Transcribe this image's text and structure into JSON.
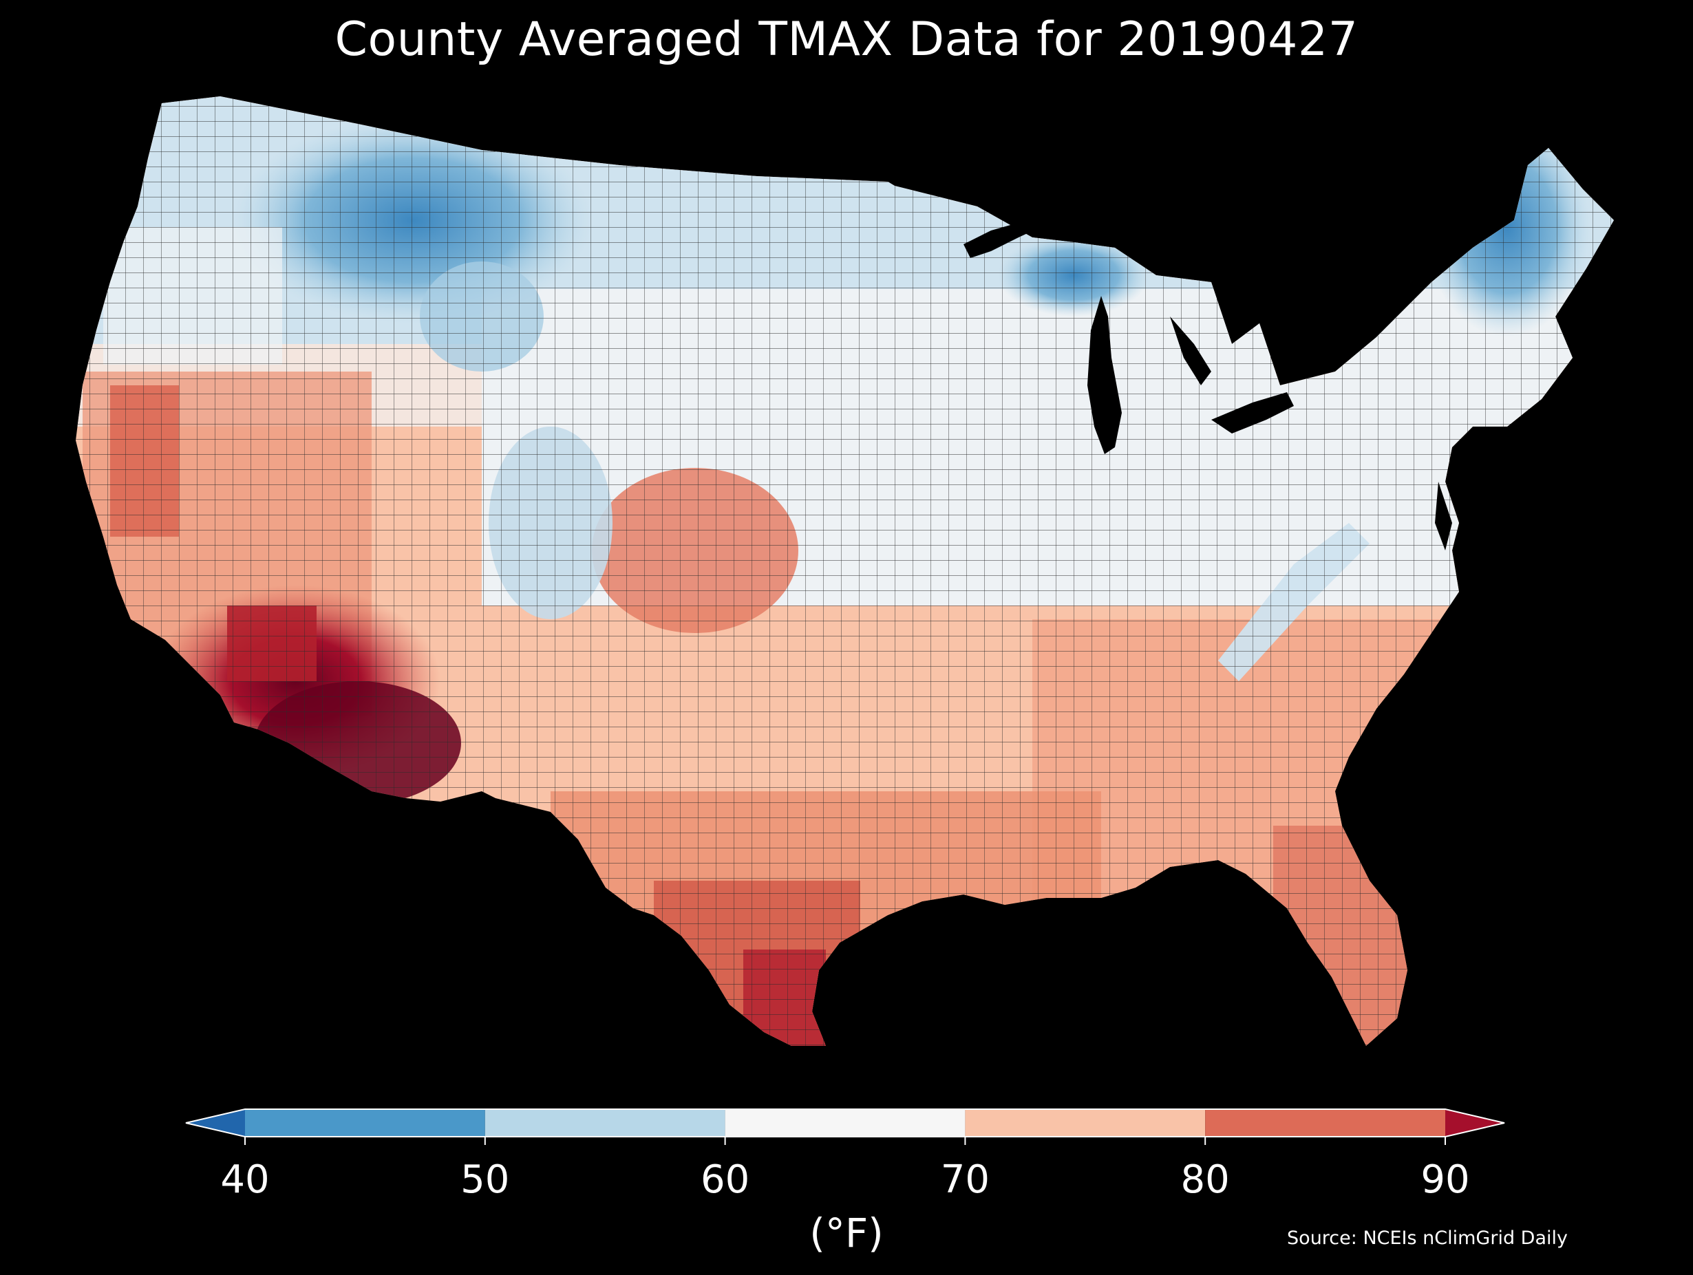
{
  "title": "County Averaged TMAX Data for 20190427",
  "source": "Source: NCEIs nClimGrid Daily",
  "colorbar": {
    "unit_label": "(°F)",
    "ticks": [
      "40",
      "50",
      "60",
      "70",
      "80",
      "90"
    ],
    "bins": [
      {
        "min": 40,
        "max": 50,
        "color": "#4a98c9"
      },
      {
        "min": 50,
        "max": 60,
        "color": "#b7d7e8"
      },
      {
        "min": 60,
        "max": 70,
        "color": "#f6f6f6"
      },
      {
        "min": 70,
        "max": 80,
        "color": "#f9c3a8"
      },
      {
        "min": 80,
        "max": 90,
        "color": "#dd6b57"
      }
    ],
    "under_color": "#2166ac",
    "over_color": "#a50f2c",
    "extend": "both"
  },
  "map": {
    "region": "Contiguous United States",
    "unit": "county",
    "variable": "TMAX",
    "background": "#000000",
    "border_color": "#222222",
    "warmest_region": "Southwest (Arizona, southern California)",
    "coolest_regions": [
      "Northern Rockies (Montana)",
      "Maine / northern New England",
      "Michigan Upper Peninsula"
    ]
  }
}
